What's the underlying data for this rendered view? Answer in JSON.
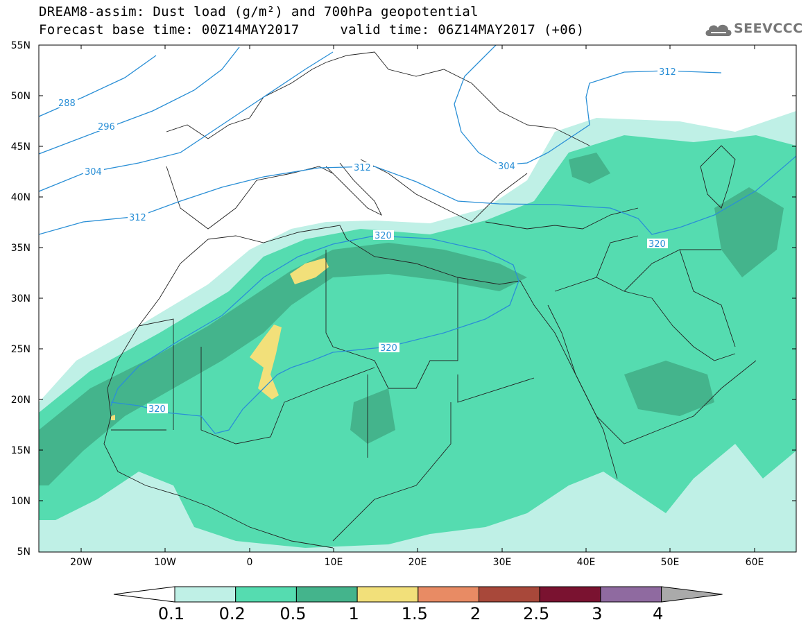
{
  "title": {
    "line1": "DREAM8-assim: Dust load (g/m²) and 700hPa geopotential",
    "line2": "Forecast base time: 00Z14MAY2017     valid time: 06Z14MAY2017 (+06)"
  },
  "logo": {
    "text": "SEEVCCC",
    "icon": "cloud-logo-icon"
  },
  "axes": {
    "lat_labels": [
      "55N",
      "50N",
      "45N",
      "40N",
      "35N",
      "30N",
      "25N",
      "20N",
      "15N",
      "10N",
      "5N"
    ],
    "lon_labels": [
      "20W",
      "10W",
      "0",
      "10E",
      "20E",
      "30E",
      "40E",
      "50E",
      "60E"
    ]
  },
  "contour_labels": [
    "288",
    "296",
    "304",
    "304",
    "312",
    "312",
    "312",
    "320",
    "320",
    "320",
    "320"
  ],
  "colorbar": {
    "labels": [
      "0.1",
      "0.2",
      "0.5",
      "1",
      "1.5",
      "2",
      "2.5",
      "3",
      "4"
    ],
    "colors": [
      "#bff0e6",
      "#55dcb0",
      "#44b48c",
      "#f2e07a",
      "#e88b64",
      "#a8483a",
      "#7a1230",
      "#8f6aa0"
    ],
    "under_color": "#ffffff",
    "over_color": "#aaaaaa"
  },
  "colors": {
    "contour": "#2a8fd6",
    "border": "#222222"
  }
}
